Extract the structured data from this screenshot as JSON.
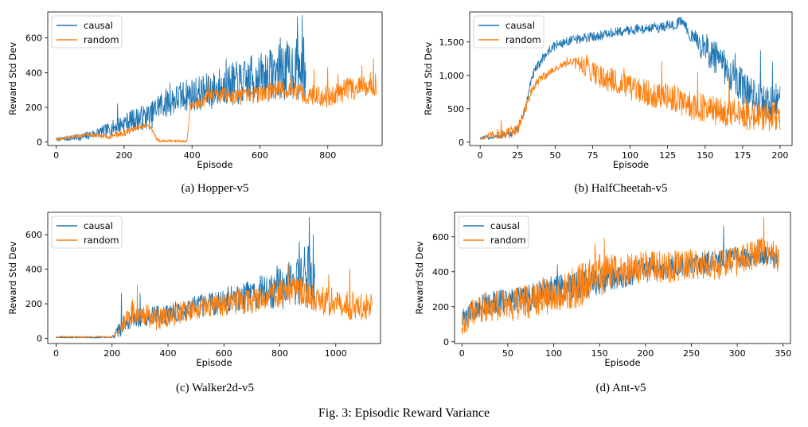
{
  "figure_caption": "Fig. 3: Episodic Reward Variance",
  "colors": {
    "causal": "#1f77b4",
    "random": "#ff7f0e"
  },
  "chart_data": [
    {
      "type": "line",
      "caption": "(a) Hopper-v5",
      "xlabel": "Episode",
      "ylabel": "Reward Std Dev",
      "xlim": [
        -25,
        960
      ],
      "ylim": [
        -20,
        750
      ],
      "xticks": [
        0,
        200,
        400,
        600,
        800
      ],
      "xtick_labels": [
        "0",
        "200",
        "400",
        "600",
        "800"
      ],
      "yticks": [
        0,
        200,
        400,
        600
      ],
      "ytick_labels": [
        "0",
        "200",
        "400",
        "600"
      ],
      "legend": "top-left",
      "series": [
        {
          "name": "causal",
          "x_end": 735,
          "keypoints": [
            [
              0,
              15
            ],
            [
              80,
              30
            ],
            [
              150,
              70
            ],
            [
              200,
              110
            ],
            [
              230,
              130
            ],
            [
              280,
              150
            ],
            [
              300,
              210
            ],
            [
              330,
              230
            ],
            [
              380,
              270
            ],
            [
              450,
              290
            ],
            [
              500,
              330
            ],
            [
              550,
              340
            ],
            [
              600,
              370
            ],
            [
              650,
              400
            ],
            [
              700,
              420
            ],
            [
              735,
              430
            ]
          ],
          "noise": [
            [
              0,
              8
            ],
            [
              150,
              30
            ],
            [
              250,
              60
            ],
            [
              400,
              80
            ],
            [
              600,
              120
            ],
            [
              735,
              160
            ]
          ],
          "spikes": [
            [
              180,
              220
            ],
            [
              335,
              340
            ],
            [
              500,
              480
            ],
            [
              575,
              500
            ],
            [
              660,
              600
            ],
            [
              710,
              720
            ],
            [
              725,
              730
            ]
          ]
        },
        {
          "name": "random",
          "x_end": 945,
          "keypoints": [
            [
              0,
              15
            ],
            [
              50,
              30
            ],
            [
              100,
              45
            ],
            [
              150,
              30
            ],
            [
              200,
              50
            ],
            [
              250,
              90
            ],
            [
              275,
              100
            ],
            [
              295,
              20
            ],
            [
              305,
              5
            ],
            [
              385,
              5
            ],
            [
              395,
              200
            ],
            [
              420,
              210
            ],
            [
              450,
              280
            ],
            [
              500,
              270
            ],
            [
              550,
              260
            ],
            [
              600,
              280
            ],
            [
              650,
              300
            ],
            [
              700,
              300
            ],
            [
              750,
              270
            ],
            [
              800,
              260
            ],
            [
              850,
              300
            ],
            [
              900,
              320
            ],
            [
              945,
              340
            ]
          ],
          "noise": [
            [
              0,
              6
            ],
            [
              200,
              15
            ],
            [
              290,
              10
            ],
            [
              390,
              4
            ],
            [
              400,
              30
            ],
            [
              945,
              60
            ]
          ],
          "spikes": [
            [
              250,
              110
            ],
            [
              450,
              380
            ],
            [
              690,
              380
            ],
            [
              760,
              420
            ],
            [
              800,
              430
            ],
            [
              830,
              390
            ],
            [
              900,
              440
            ],
            [
              935,
              480
            ]
          ]
        }
      ]
    },
    {
      "type": "line",
      "caption": "(b) HalfCheetah-v5",
      "xlabel": "Episode",
      "ylabel": "Reward Std Dev",
      "xlim": [
        -7,
        208
      ],
      "ylim": [
        -50,
        1950
      ],
      "xticks": [
        0,
        25,
        50,
        75,
        100,
        125,
        150,
        175,
        200
      ],
      "xtick_labels": [
        "0",
        "25",
        "50",
        "75",
        "100",
        "125",
        "150",
        "175",
        "200"
      ],
      "yticks": [
        0,
        500,
        1000,
        1500
      ],
      "ytick_labels": [
        "0",
        "500",
        "1,000",
        "1,500"
      ],
      "legend": "top-left",
      "series": [
        {
          "name": "causal",
          "x_end": 200,
          "keypoints": [
            [
              0,
              60
            ],
            [
              10,
              80
            ],
            [
              20,
              120
            ],
            [
              25,
              180
            ],
            [
              30,
              500
            ],
            [
              35,
              1000
            ],
            [
              40,
              1200
            ],
            [
              45,
              1350
            ],
            [
              50,
              1450
            ],
            [
              60,
              1520
            ],
            [
              75,
              1580
            ],
            [
              100,
              1680
            ],
            [
              120,
              1720
            ],
            [
              130,
              1760
            ],
            [
              135,
              1820
            ],
            [
              140,
              1600
            ],
            [
              150,
              1400
            ],
            [
              160,
              1200
            ],
            [
              170,
              950
            ],
            [
              180,
              700
            ],
            [
              190,
              550
            ],
            [
              200,
              600
            ]
          ],
          "noise": [
            [
              0,
              20
            ],
            [
              30,
              60
            ],
            [
              60,
              60
            ],
            [
              140,
              70
            ],
            [
              150,
              200
            ],
            [
              200,
              250
            ]
          ],
          "spikes": [
            [
              133,
              1850
            ],
            [
              158,
              1400
            ],
            [
              170,
              1330
            ],
            [
              187,
              1370
            ],
            [
              195,
              1200
            ]
          ]
        },
        {
          "name": "random",
          "x_end": 200,
          "keypoints": [
            [
              0,
              60
            ],
            [
              10,
              120
            ],
            [
              20,
              150
            ],
            [
              25,
              200
            ],
            [
              30,
              500
            ],
            [
              35,
              800
            ],
            [
              40,
              950
            ],
            [
              50,
              1100
            ],
            [
              60,
              1200
            ],
            [
              70,
              1150
            ],
            [
              80,
              1000
            ],
            [
              90,
              900
            ],
            [
              100,
              800
            ],
            [
              110,
              750
            ],
            [
              120,
              700
            ],
            [
              130,
              650
            ],
            [
              140,
              550
            ],
            [
              150,
              500
            ],
            [
              160,
              450
            ],
            [
              170,
              420
            ],
            [
              180,
              400
            ],
            [
              200,
              380
            ]
          ],
          "noise": [
            [
              0,
              20
            ],
            [
              15,
              80
            ],
            [
              30,
              60
            ],
            [
              60,
              40
            ],
            [
              70,
              150
            ],
            [
              200,
              200
            ]
          ],
          "spikes": [
            [
              14,
              330
            ],
            [
              58,
              1270
            ],
            [
              96,
              1110
            ],
            [
              121,
              1210
            ],
            [
              145,
              1050
            ],
            [
              166,
              1010
            ]
          ]
        }
      ]
    },
    {
      "type": "line",
      "caption": "(c) Walker2d-v5",
      "xlabel": "Episode",
      "ylabel": "Reward Std Dev",
      "xlim": [
        -30,
        1160
      ],
      "ylim": [
        -30,
        730
      ],
      "xticks": [
        0,
        200,
        400,
        600,
        800,
        1000
      ],
      "xtick_labels": [
        "0",
        "200",
        "400",
        "600",
        "800",
        "1000"
      ],
      "yticks": [
        0,
        200,
        400,
        600
      ],
      "ytick_labels": [
        "0",
        "200",
        "400",
        "600"
      ],
      "legend": "top-left",
      "series": [
        {
          "name": "causal",
          "x_end": 925,
          "keypoints": [
            [
              0,
              5
            ],
            [
              100,
              5
            ],
            [
              200,
              5
            ],
            [
              220,
              40
            ],
            [
              250,
              100
            ],
            [
              300,
              120
            ],
            [
              400,
              140
            ],
            [
              500,
              180
            ],
            [
              600,
              220
            ],
            [
              700,
              250
            ],
            [
              800,
              290
            ],
            [
              850,
              330
            ],
            [
              900,
              350
            ],
            [
              925,
              360
            ]
          ],
          "noise": [
            [
              0,
              2
            ],
            [
              200,
              3
            ],
            [
              220,
              40
            ],
            [
              600,
              60
            ],
            [
              800,
              100
            ],
            [
              925,
              180
            ]
          ],
          "spikes": [
            [
              233,
              260
            ],
            [
              300,
              260
            ],
            [
              790,
              420
            ],
            [
              870,
              560
            ],
            [
              905,
              700
            ],
            [
              920,
              600
            ]
          ]
        },
        {
          "name": "random",
          "x_end": 1130,
          "keypoints": [
            [
              0,
              10
            ],
            [
              100,
              8
            ],
            [
              200,
              10
            ],
            [
              230,
              50
            ],
            [
              260,
              150
            ],
            [
              300,
              160
            ],
            [
              350,
              110
            ],
            [
              400,
              130
            ],
            [
              500,
              170
            ],
            [
              600,
              200
            ],
            [
              700,
              220
            ],
            [
              800,
              260
            ],
            [
              850,
              280
            ],
            [
              900,
              250
            ],
            [
              950,
              220
            ],
            [
              1000,
              210
            ],
            [
              1050,
              190
            ],
            [
              1100,
              170
            ],
            [
              1130,
              180
            ]
          ],
          "noise": [
            [
              0,
              3
            ],
            [
              220,
              4
            ],
            [
              260,
              60
            ],
            [
              500,
              50
            ],
            [
              800,
              70
            ],
            [
              1130,
              70
            ]
          ],
          "spikes": [
            [
              290,
              310
            ],
            [
              655,
              280
            ],
            [
              830,
              430
            ],
            [
              975,
              370
            ],
            [
              1050,
              400
            ]
          ]
        }
      ]
    },
    {
      "type": "line",
      "caption": "(d) Ant-v5",
      "xlabel": "Episode",
      "ylabel": "Reward Std Dev",
      "xlim": [
        -8,
        358
      ],
      "ylim": [
        -10,
        740
      ],
      "xticks": [
        0,
        50,
        100,
        150,
        200,
        250,
        300,
        350
      ],
      "xtick_labels": [
        "0",
        "50",
        "100",
        "150",
        "200",
        "250",
        "300",
        "350"
      ],
      "yticks": [
        0,
        200,
        400,
        600
      ],
      "ytick_labels": [
        "0",
        "200",
        "400",
        "600"
      ],
      "legend": "top-left",
      "series": [
        {
          "name": "causal",
          "x_end": 345,
          "keypoints": [
            [
              0,
              120
            ],
            [
              10,
              170
            ],
            [
              25,
              220
            ],
            [
              50,
              230
            ],
            [
              75,
              250
            ],
            [
              100,
              300
            ],
            [
              125,
              320
            ],
            [
              150,
              350
            ],
            [
              175,
              380
            ],
            [
              200,
              410
            ],
            [
              225,
              430
            ],
            [
              250,
              440
            ],
            [
              275,
              460
            ],
            [
              300,
              480
            ],
            [
              325,
              500
            ],
            [
              345,
              470
            ]
          ],
          "noise": [
            [
              0,
              50
            ],
            [
              100,
              70
            ],
            [
              200,
              60
            ],
            [
              345,
              50
            ]
          ],
          "spikes": [
            [
              104,
              440
            ],
            [
              285,
              660
            ]
          ]
        },
        {
          "name": "random",
          "x_end": 345,
          "keypoints": [
            [
              0,
              100
            ],
            [
              10,
              160
            ],
            [
              25,
              200
            ],
            [
              50,
              210
            ],
            [
              75,
              230
            ],
            [
              100,
              280
            ],
            [
              125,
              310
            ],
            [
              150,
              380
            ],
            [
              175,
              410
            ],
            [
              200,
              430
            ],
            [
              225,
              430
            ],
            [
              250,
              440
            ],
            [
              275,
              440
            ],
            [
              300,
              460
            ],
            [
              325,
              520
            ],
            [
              345,
              480
            ]
          ],
          "noise": [
            [
              0,
              60
            ],
            [
              140,
              110
            ],
            [
              170,
              80
            ],
            [
              345,
              70
            ]
          ],
          "spikes": [
            [
              145,
              560
            ],
            [
              155,
              590
            ],
            [
              329,
              710
            ]
          ]
        }
      ]
    }
  ]
}
